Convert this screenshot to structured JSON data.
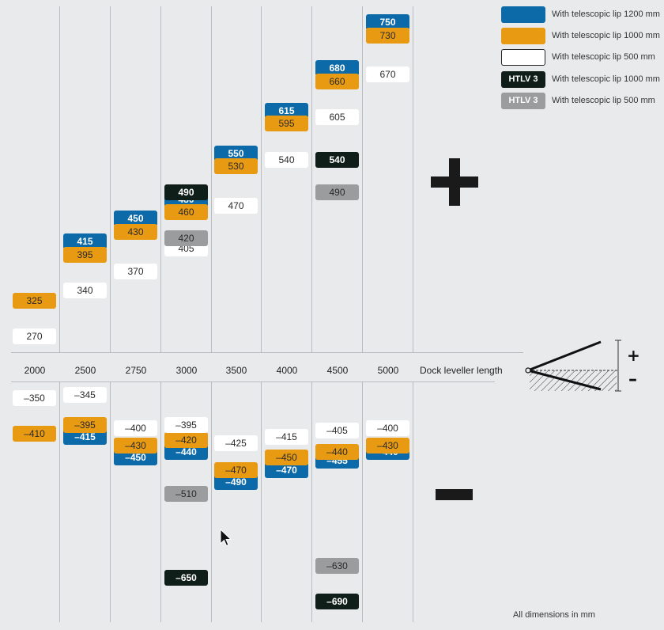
{
  "chart_data": {
    "type": "table",
    "x_axis_label": "Dock leveller length",
    "categories": [
      "2000",
      "2500",
      "2750",
      "3000",
      "3500",
      "4000",
      "4500",
      "5000"
    ],
    "legend": [
      {
        "swatch_text": "",
        "text": "With telescopic lip 1200 mm",
        "style": "blue"
      },
      {
        "swatch_text": "",
        "text": "With telescopic lip 1000 mm",
        "style": "orange"
      },
      {
        "swatch_text": "",
        "text": "With telescopic lip 500 mm",
        "style": "white"
      },
      {
        "swatch_text": "HTLV 3",
        "text": "With telescopic lip 1000 mm",
        "style": "black"
      },
      {
        "swatch_text": "HTLV 3",
        "text": "With telescopic lip 500 mm",
        "style": "gray"
      }
    ],
    "upper_values": [
      {
        "category": "2000",
        "orange": 325,
        "white": 270
      },
      {
        "category": "2500",
        "blue": 415,
        "orange": 395,
        "white": 340
      },
      {
        "category": "2750",
        "blue": 450,
        "orange": 430,
        "white": 370
      },
      {
        "category": "3000",
        "black": 490,
        "blue": 480,
        "orange": 460,
        "gray": 420,
        "white": 405
      },
      {
        "category": "3500",
        "blue": 550,
        "orange": 530,
        "white": 470
      },
      {
        "category": "4000",
        "blue": 615,
        "orange": 595,
        "white": 540
      },
      {
        "category": "4500",
        "blue": 680,
        "orange": 660,
        "white": 605,
        "black": 540,
        "gray": 490
      },
      {
        "category": "5000",
        "blue": 750,
        "orange": 730,
        "white": 670
      }
    ],
    "lower_values": [
      {
        "category": "2000",
        "white": "–350",
        "orange": "–410"
      },
      {
        "category": "2500",
        "white": "–345",
        "orange": "–395",
        "blue": "–415"
      },
      {
        "category": "2750",
        "white": "–400",
        "orange": "–430",
        "blue": "–450"
      },
      {
        "category": "3000",
        "white": "–395",
        "orange": "–420",
        "blue": "–440",
        "gray": "–510",
        "black": "–650"
      },
      {
        "category": "3500",
        "white": "–425",
        "orange": "–470",
        "blue": "–490"
      },
      {
        "category": "4000",
        "white": "–415",
        "orange": "–450",
        "blue": "–470"
      },
      {
        "category": "4500",
        "white": "–405",
        "orange": "–440",
        "blue": "–455",
        "gray": "–630",
        "black": "–690"
      },
      {
        "category": "5000",
        "white": "–400",
        "orange": "–430",
        "blue": "–440"
      }
    ],
    "colors": {
      "blue": "#0c6aa8",
      "orange": "#e89a12",
      "white": "#ffffff",
      "black": "#0f1e18",
      "gray": "#9a9c9e"
    }
  },
  "diagram": {
    "plus_label": "+",
    "minus_label": "–"
  },
  "footnote": "All dimensions in mm"
}
